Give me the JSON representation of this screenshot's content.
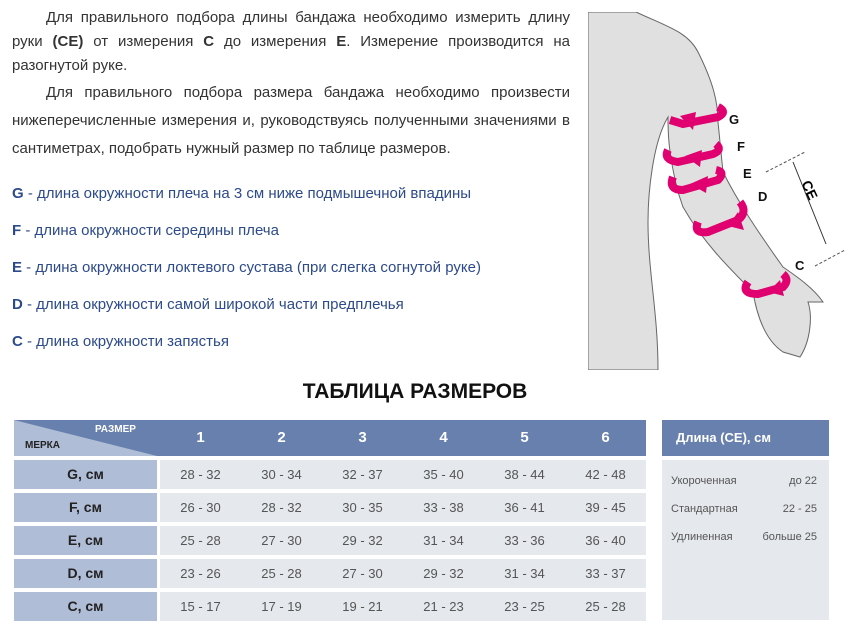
{
  "intro": {
    "p1_a": "Для правильного подбора длины бандажа необходимо измерить длину руки ",
    "p1_ce": "(CE)",
    "p1_b": " от измерения ",
    "p1_c": "C",
    "p1_d": " до измерения ",
    "p1_e": "E",
    "p1_f": ".    Измерение производится на разогнутой руке.",
    "p2": "Для правильного подбора размера бандажа необходимо произвести нижеперечисленные измерения и, руководствуясь полученными значениями в сантиметрах, подобрать нужный размер по таблице размеров."
  },
  "measures": [
    {
      "key": "G",
      "text": " - длина окружности плеча на 3 см ниже подмышечной впадины"
    },
    {
      "key": "F",
      "text": " - длина окружности середины плеча"
    },
    {
      "key": "E",
      "text": " - длина окружности локтевого сустава (при слегка согнутой руке)"
    },
    {
      "key": "D",
      "text": " - длина окружности самой широкой части предплечья"
    },
    {
      "key": "C",
      "text": " - длина окружности запястья"
    }
  ],
  "figure": {
    "labels": [
      "G",
      "F",
      "E",
      "D",
      "C"
    ],
    "ce": "CE",
    "arrow_color": "#e0006f"
  },
  "table": {
    "title": "ТАБЛИЦА РАЗМЕРОВ",
    "corner_top": "РАЗМЕР",
    "corner_bottom": "МЕРКА",
    "sizes": [
      "1",
      "2",
      "3",
      "4",
      "5",
      "6"
    ],
    "rows": [
      {
        "label": "G, см",
        "values": [
          "28 - 32",
          "30 - 34",
          "32 - 37",
          "35 - 40",
          "38 - 44",
          "42 - 48"
        ]
      },
      {
        "label": "F, см",
        "values": [
          "26 - 30",
          "28 - 32",
          "30 - 35",
          "33 - 38",
          "36 - 41",
          "39 - 45"
        ]
      },
      {
        "label": "E, см",
        "values": [
          "25 - 28",
          "27 - 30",
          "29 - 32",
          "31 - 34",
          "33 - 36",
          "36 - 40"
        ]
      },
      {
        "label": "D, см",
        "values": [
          "23 - 26",
          "25 - 28",
          "27 - 30",
          "29 - 32",
          "31 - 34",
          "33 - 37"
        ]
      },
      {
        "label": "C, см",
        "values": [
          "15 - 17",
          "17 - 19",
          "19 - 21",
          "21 - 23",
          "23 - 25",
          "25 - 28"
        ]
      }
    ]
  },
  "length": {
    "title": "Длина (CE), см",
    "rows": [
      {
        "name": "Укороченная",
        "value": "до 22"
      },
      {
        "name": "Стандартная",
        "value": "22 - 25"
      },
      {
        "name": "Удлиненная",
        "value": "больше 25"
      }
    ]
  }
}
